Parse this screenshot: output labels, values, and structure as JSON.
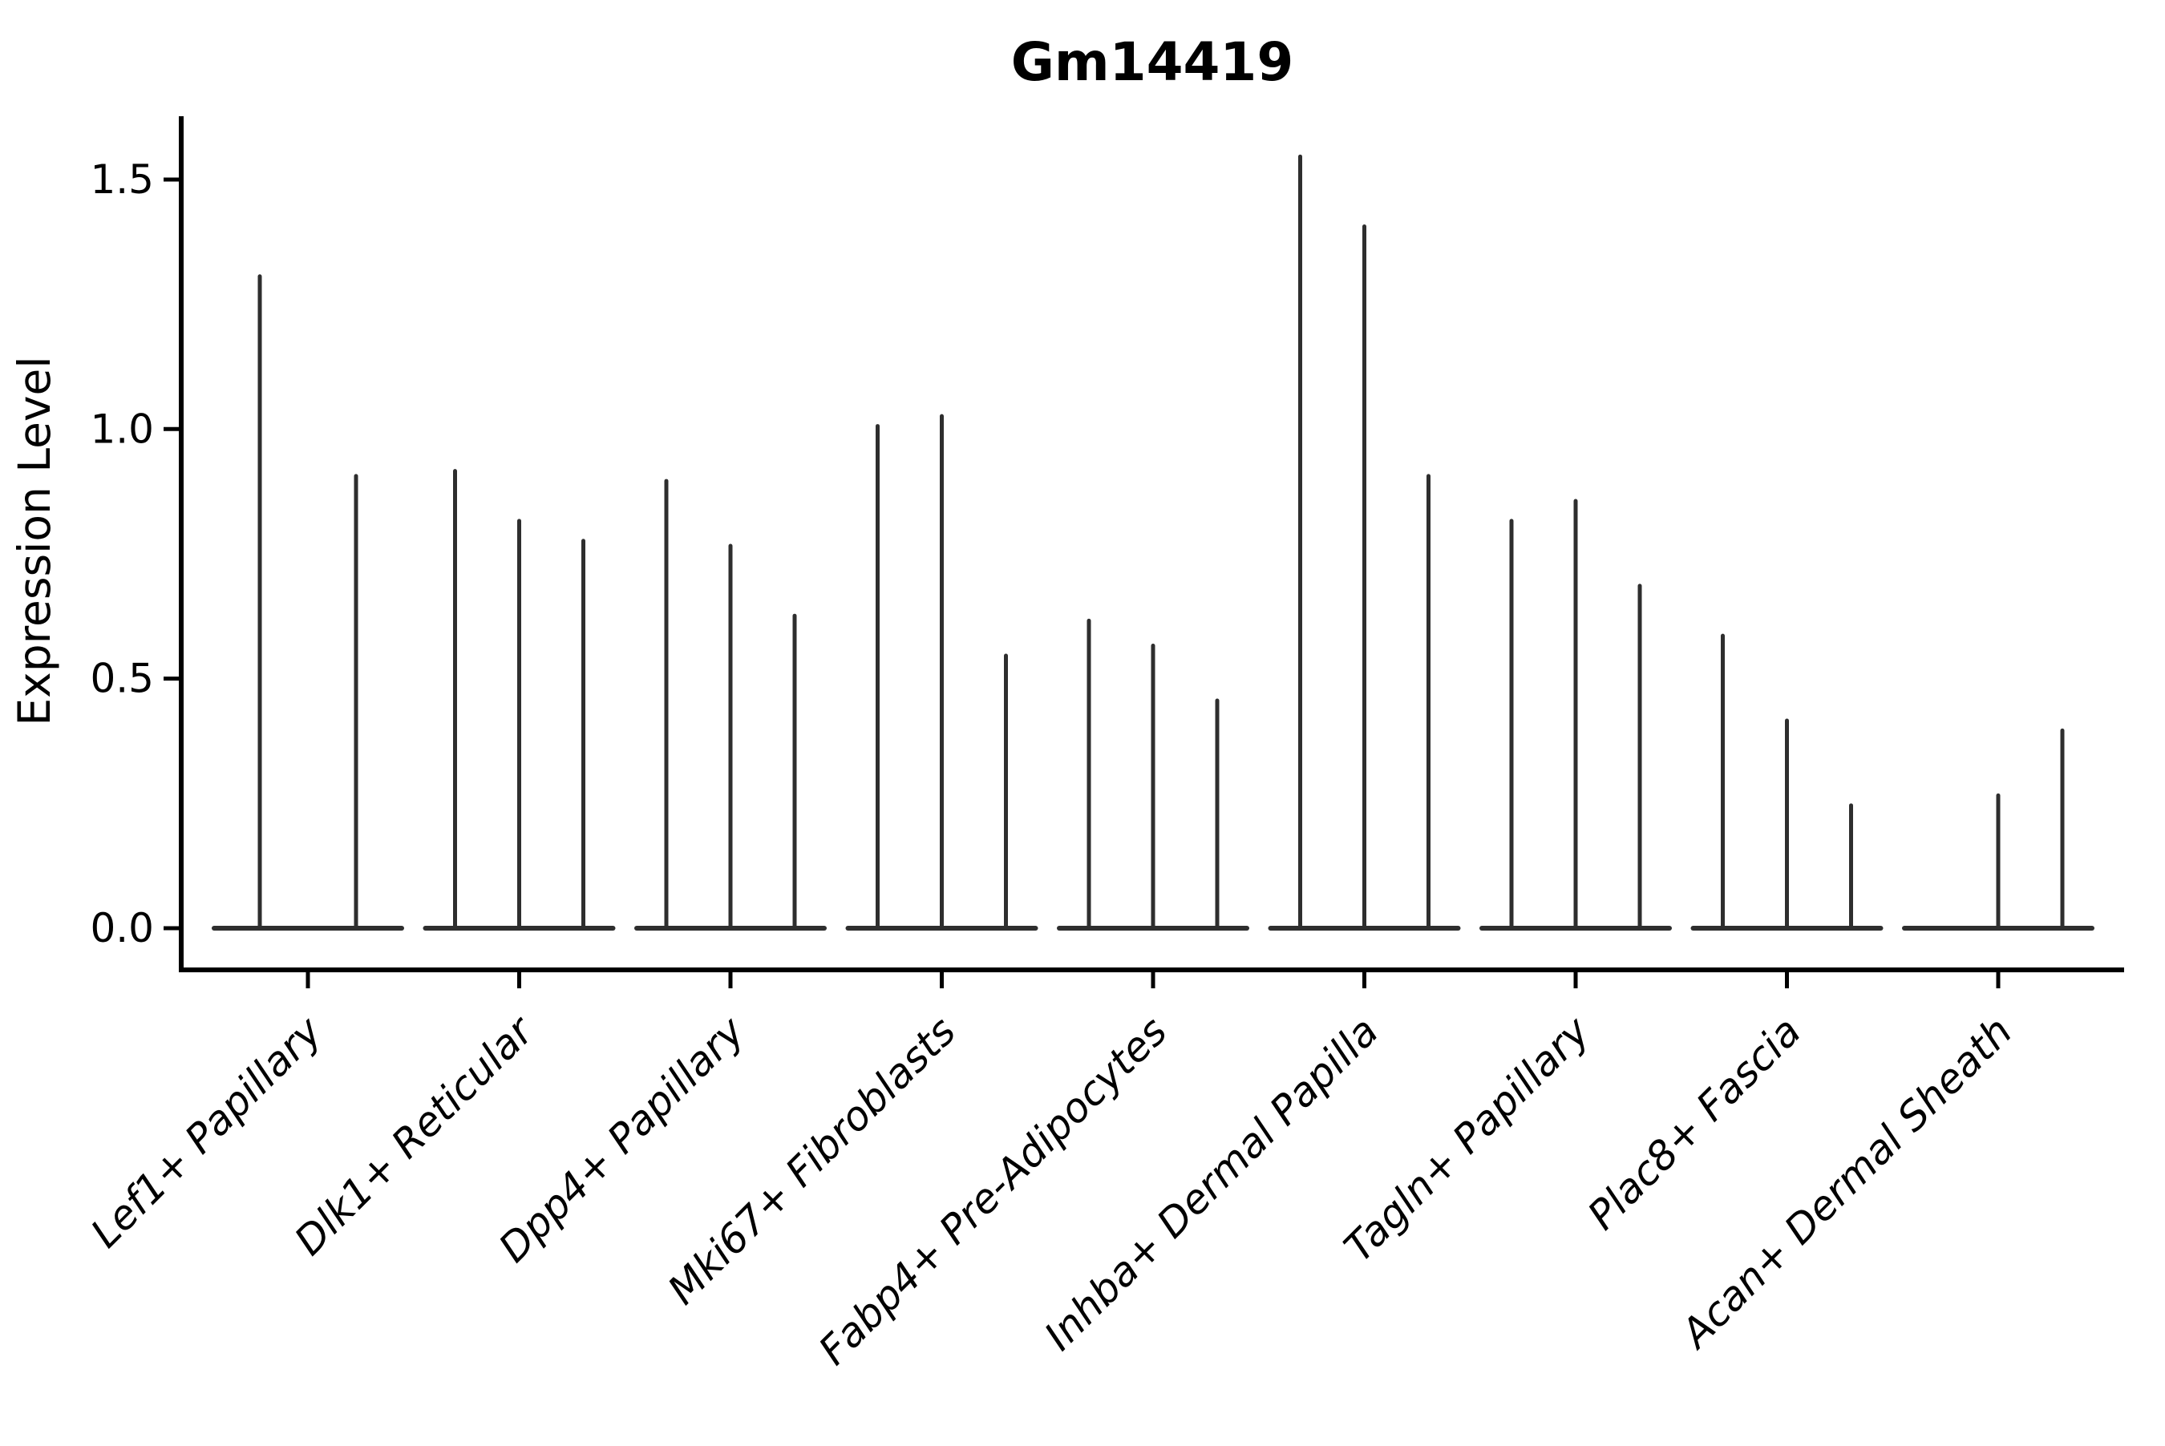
{
  "title": "Gm14419",
  "axes": {
    "ylabel": "Expression Level",
    "ytick_labels": [
      "0.0",
      "0.5",
      "1.0",
      "1.5"
    ],
    "xtick_labels": [
      "Lef1+ Papillary",
      "Dlk1+ Reticular",
      "Dpp4+ Papillary",
      "Mki67+ Fibroblasts",
      "Fabp4+ Pre-Adipocytes",
      "Inhba+ Dermal Papilla",
      "Tagln+ Papillary",
      "Plac8+ Fascia",
      "Acan+ Dermal Sheath"
    ]
  },
  "colors": {
    "violin_fill": "#2e2e2e",
    "axis": "#000000",
    "text": "#000000",
    "background": "#ffffff"
  },
  "chart_data": {
    "type": "violin",
    "title": "Gm14419",
    "xlabel": "",
    "ylabel": "Expression Level",
    "ylim": [
      -0.08,
      1.64
    ],
    "yticks": [
      0,
      0.5,
      1,
      1.5
    ],
    "grid": false,
    "legend": "none",
    "style_note": "needle-shaped violins: density concentrated at 0 (flat wide base) with a thin vertical tail up to the max value; 0 means an all-zero flat violin with no tail; groups of 2-3 violins share a merged base",
    "categories": [
      "Lef1+ Papillary",
      "Dlk1+ Reticular",
      "Dpp4+ Papillary",
      "Mki67+ Fibroblasts",
      "Fabp4+ Pre-Adipocytes",
      "Inhba+ Dermal Papilla",
      "Tagln+ Papillary",
      "Plac8+ Fascia",
      "Acan+ Dermal Sheath"
    ],
    "series": [
      {
        "category": "Lef1+ Papillary",
        "violin_maxima": [
          1.31,
          0.91
        ]
      },
      {
        "category": "Dlk1+ Reticular",
        "violin_maxima": [
          0.92,
          0.82,
          0.78
        ]
      },
      {
        "category": "Dpp4+ Papillary",
        "violin_maxima": [
          0.9,
          0.77,
          0.63
        ]
      },
      {
        "category": "Mki67+ Fibroblasts",
        "violin_maxima": [
          1.01,
          1.03,
          0.55
        ]
      },
      {
        "category": "Fabp4+ Pre-Adipocytes",
        "violin_maxima": [
          0.62,
          0.57,
          0.46
        ]
      },
      {
        "category": "Inhba+ Dermal Papilla",
        "violin_maxima": [
          1.55,
          1.41,
          0.91
        ]
      },
      {
        "category": "Tagln+ Papillary",
        "violin_maxima": [
          0.82,
          0.86,
          0.69
        ]
      },
      {
        "category": "Plac8+ Fascia",
        "violin_maxima": [
          0.59,
          0.42,
          0.25
        ]
      },
      {
        "category": "Acan+ Dermal Sheath",
        "violin_maxima": [
          0.0,
          0.27,
          0.4
        ]
      }
    ]
  }
}
